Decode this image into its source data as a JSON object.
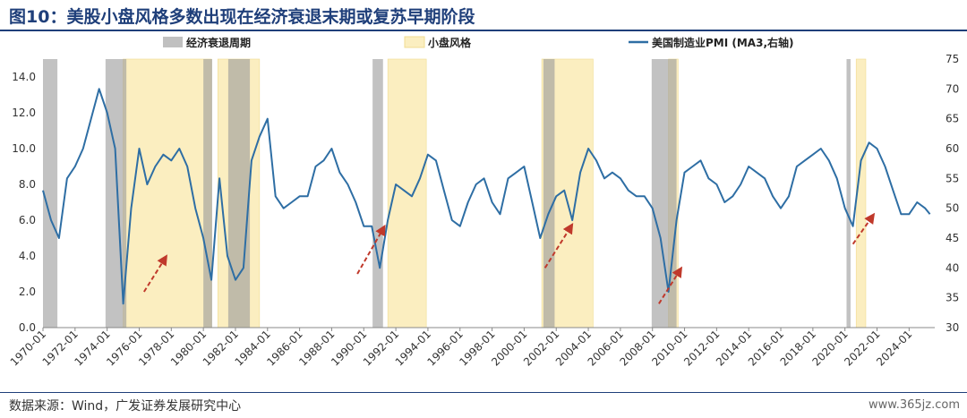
{
  "figure": {
    "title": "图10：美股小盘风格多数出现在经济衰退末期或复苏早期阶段",
    "source": "数据来源：Wind，广发证券发展研究中心",
    "watermark": "www.365jz.com"
  },
  "chart_data": {
    "type": "line",
    "legend": [
      {
        "name": "经济衰退周期",
        "color": "#c0c0c0",
        "kind": "band"
      },
      {
        "name": "小盘风格",
        "color": "#fbeec0",
        "kind": "band"
      },
      {
        "name": "美国制造业PMI (MA3,右轴)",
        "color": "#2e6ea4",
        "kind": "line"
      }
    ],
    "x_ticks": [
      "1970-01",
      "1972-01",
      "1974-01",
      "1976-01",
      "1978-01",
      "1980-01",
      "1982-01",
      "1984-01",
      "1986-01",
      "1988-01",
      "1990-01",
      "1992-01",
      "1994-01",
      "1996-01",
      "1998-01",
      "2000-01",
      "2002-01",
      "2004-01",
      "2006-01",
      "2008-01",
      "2010-01",
      "2012-01",
      "2014-01",
      "2016-01",
      "2018-01",
      "2020-01",
      "2022-01",
      "2024-01"
    ],
    "x_range": [
      1970.0,
      2025.6
    ],
    "left_axis": {
      "range": [
        0,
        15
      ],
      "ticks": [
        "0.0",
        "2.0",
        "4.0",
        "6.0",
        "8.0",
        "10.0",
        "12.0",
        "14.0"
      ]
    },
    "right_axis": {
      "range": [
        30,
        75
      ],
      "ticks": [
        "30",
        "35",
        "40",
        "45",
        "50",
        "55",
        "60",
        "65",
        "70",
        "75"
      ]
    },
    "recessions": [
      [
        1970.0,
        1970.9
      ],
      [
        1973.9,
        1975.2
      ],
      [
        1980.0,
        1980.55
      ],
      [
        1981.55,
        1982.9
      ],
      [
        1990.55,
        1991.2
      ],
      [
        2001.2,
        2001.9
      ],
      [
        2007.95,
        2009.5
      ],
      [
        2020.1,
        2020.35
      ]
    ],
    "small_cap_periods": [
      [
        1975.0,
        1980.5
      ],
      [
        1980.9,
        1983.5
      ],
      [
        1991.5,
        1993.9
      ],
      [
        2001.1,
        2004.3
      ],
      [
        2009.0,
        2009.6
      ],
      [
        2020.7,
        2021.3
      ]
    ],
    "pmi": {
      "name": "美国制造业PMI (MA3,右轴)",
      "x": [
        1970.0,
        1970.5,
        1971.0,
        1971.5,
        1972.0,
        1972.5,
        1973.0,
        1973.5,
        1974.0,
        1974.5,
        1975.0,
        1975.5,
        1976.0,
        1976.5,
        1977.0,
        1977.5,
        1978.0,
        1978.5,
        1979.0,
        1979.5,
        1980.0,
        1980.5,
        1981.0,
        1981.5,
        1982.0,
        1982.5,
        1983.0,
        1983.5,
        1984.0,
        1984.5,
        1985.0,
        1985.5,
        1986.0,
        1986.5,
        1987.0,
        1987.5,
        1988.0,
        1988.5,
        1989.0,
        1989.5,
        1990.0,
        1990.5,
        1991.0,
        1991.5,
        1992.0,
        1992.5,
        1993.0,
        1993.5,
        1994.0,
        1994.5,
        1995.0,
        1995.5,
        1996.0,
        1996.5,
        1997.0,
        1997.5,
        1998.0,
        1998.5,
        1999.0,
        1999.5,
        2000.0,
        2000.5,
        2001.0,
        2001.5,
        2002.0,
        2002.5,
        2003.0,
        2003.5,
        2004.0,
        2004.5,
        2005.0,
        2005.5,
        2006.0,
        2006.5,
        2007.0,
        2007.5,
        2008.0,
        2008.5,
        2009.0,
        2009.5,
        2010.0,
        2010.5,
        2011.0,
        2011.5,
        2012.0,
        2012.5,
        2013.0,
        2013.5,
        2014.0,
        2014.5,
        2015.0,
        2015.5,
        2016.0,
        2016.5,
        2017.0,
        2017.5,
        2018.0,
        2018.5,
        2019.0,
        2019.5,
        2020.0,
        2020.5,
        2021.0,
        2021.5,
        2022.0,
        2022.5,
        2023.0,
        2023.5,
        2024.0,
        2024.5,
        2025.0,
        2025.3
      ],
      "y": [
        53,
        48,
        45,
        55,
        57,
        60,
        65,
        70,
        66,
        60,
        34,
        50,
        60,
        54,
        57,
        59,
        58,
        60,
        57,
        50,
        45,
        38,
        55,
        42,
        38,
        40,
        58,
        62,
        65,
        52,
        50,
        51,
        52,
        52,
        57,
        58,
        60,
        56,
        54,
        51,
        47,
        47,
        40,
        48,
        54,
        53,
        52,
        55,
        59,
        58,
        53,
        48,
        47,
        51,
        54,
        55,
        51,
        49,
        55,
        56,
        57,
        51,
        45,
        49,
        52,
        53,
        48,
        56,
        60,
        58,
        55,
        56,
        55,
        53,
        52,
        52,
        50,
        45,
        36,
        48,
        56,
        57,
        58,
        55,
        54,
        51,
        52,
        54,
        57,
        56,
        55,
        52,
        50,
        52,
        57,
        58,
        59,
        60,
        58,
        55,
        50,
        47,
        58,
        61,
        60,
        57,
        53,
        49,
        49,
        51,
        50,
        49
      ]
    }
  }
}
